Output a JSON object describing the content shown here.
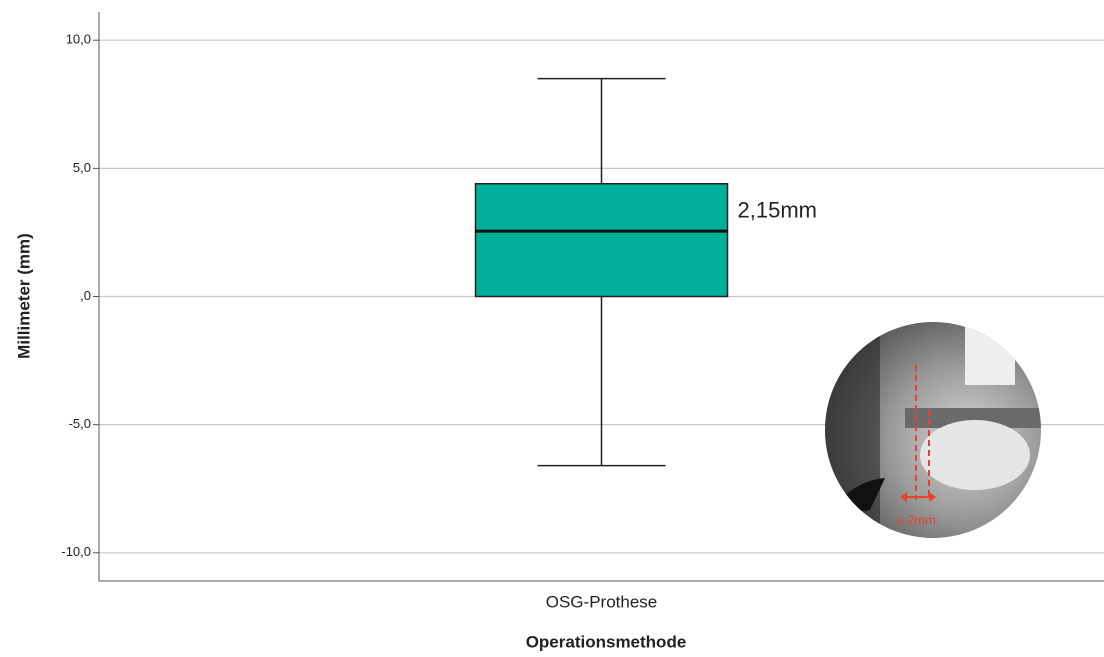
{
  "chart_data": {
    "type": "box",
    "x_label": "Operationsmethode",
    "y_label": "Millimeter (mm)",
    "categories": [
      "OSG-Prothese"
    ],
    "whisker_low": [
      -6.6
    ],
    "q1": [
      0
    ],
    "median": [
      2.55
    ],
    "q3": [
      4.4
    ],
    "whisker_high": [
      8.5
    ],
    "color": "#00b09b",
    "annotation": "2,15mm",
    "inset_label": "≥ 2mm",
    "ylim": [
      -11.1,
      11.1
    ],
    "yticks": [
      {
        "value": -10,
        "label": "-10,0"
      },
      {
        "value": -5,
        "label": "-5,0"
      },
      {
        "value": 0,
        "label": ",0"
      },
      {
        "value": 5,
        "label": "5,0"
      },
      {
        "value": 10,
        "label": "10,0"
      }
    ],
    "grid": true
  }
}
